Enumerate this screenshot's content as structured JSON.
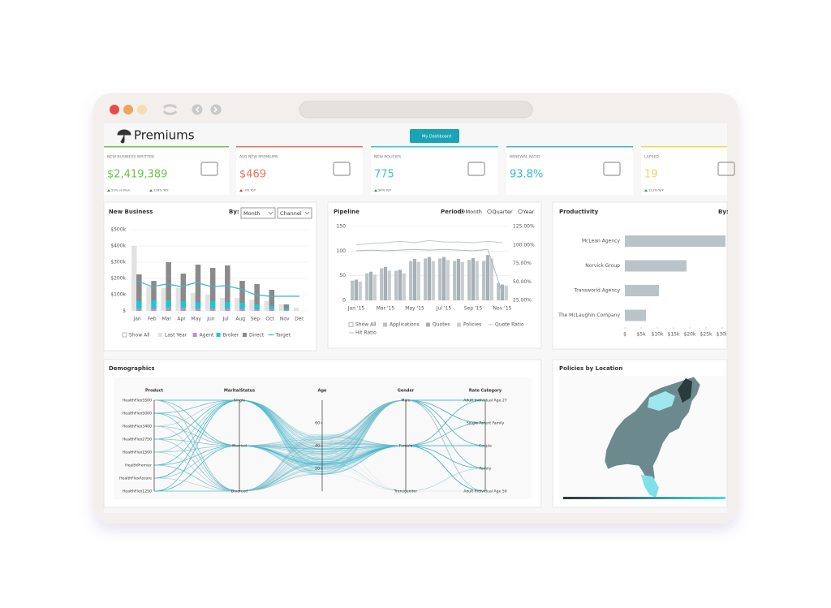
{
  "app": {
    "title": "Premiums",
    "button": "My Dashboard"
  },
  "kpis": [
    {
      "label": "NEW BUSINESS WRITTEN",
      "value": "$2,419,389",
      "notes": [
        "53% vs Plan",
        "116% YoY"
      ],
      "color": "#6cc24a"
    },
    {
      "label": "AVG NEW PREMIUMS",
      "value": "$469",
      "notes": [
        "-3% YoY"
      ],
      "color": "#e8735f"
    },
    {
      "label": "NEW POLICIES",
      "value": "775",
      "notes": [
        "94% YoY"
      ],
      "color": "#3cc3d6"
    },
    {
      "label": "RENEWAL RATIO",
      "value": "93.8%",
      "notes": [],
      "color": "#3cb5d0"
    },
    {
      "label": "LAPSED",
      "value": "19",
      "notes": [
        "111% YoY"
      ],
      "color": "#e5dc5a"
    }
  ],
  "chart_data": [
    {
      "type": "bar",
      "title": "New Business",
      "by_label": "By:",
      "dropdowns": [
        "Month",
        "Channel"
      ],
      "show_all": "Show All",
      "categories": [
        "Jan",
        "Feb",
        "Mar",
        "Apr",
        "May",
        "Jun",
        "Jul",
        "Aug",
        "Sep",
        "Oct",
        "Nov",
        "Dec"
      ],
      "series": [
        {
          "name": "Last Year",
          "color": "#e2e2e2",
          "type": "bar",
          "stack": "last",
          "values": [
            400000,
            150000,
            140000,
            140000,
            110000,
            100000,
            80000,
            80000,
            70000,
            60000,
            40000,
            20000
          ]
        },
        {
          "name": "Agent",
          "color": "#b98fd6",
          "type": "bar",
          "stack": "current",
          "values": [
            15000,
            15000,
            20000,
            20000,
            15000,
            15000,
            15000,
            15000,
            10000,
            10000,
            5000,
            0
          ]
        },
        {
          "name": "Broker",
          "color": "#1ec6d0",
          "type": "bar",
          "stack": "current",
          "values": [
            45000,
            50000,
            45000,
            40000,
            40000,
            45000,
            40000,
            35000,
            30000,
            20000,
            10000,
            0
          ]
        },
        {
          "name": "Direct",
          "color": "#8a8a8a",
          "type": "bar",
          "stack": "current",
          "values": [
            165000,
            120000,
            235000,
            170000,
            230000,
            205000,
            225000,
            135000,
            125000,
            100000,
            25000,
            0
          ]
        },
        {
          "name": "Target",
          "color": "#3fb5d8",
          "type": "line",
          "values": [
            185000,
            150000,
            165000,
            150000,
            175000,
            150000,
            155000,
            135000,
            100000,
            90000,
            90000,
            90000
          ]
        }
      ],
      "ylim": [
        0,
        500000
      ],
      "yticks": [
        {
          "value": 0,
          "label": "$"
        },
        {
          "value": 100000,
          "label": "$100k"
        },
        {
          "value": 200000,
          "label": "$200k"
        },
        {
          "value": 300000,
          "label": "$300k"
        },
        {
          "value": 400000,
          "label": "$400k"
        },
        {
          "value": 500000,
          "label": "$500k"
        }
      ],
      "grid": true
    },
    {
      "type": "combo",
      "title": "Pipeline",
      "period_label": "Period:",
      "periods": [
        "Month",
        "Quarter",
        "Year"
      ],
      "show_all": "Show All",
      "categories": [
        "Jan '15",
        null,
        "Mar '15",
        null,
        "May '15",
        null,
        "Jul '15",
        null,
        "Sep '15",
        null,
        "Nov '15"
      ],
      "series": [
        {
          "name": "Applications",
          "color": "#b9c1c5",
          "type": "bar",
          "values": [
            40,
            55,
            65,
            60,
            80,
            85,
            85,
            80,
            82,
            80,
            35
          ]
        },
        {
          "name": "Quotes",
          "color": "#a7b0b4",
          "type": "bar",
          "values": [
            42,
            58,
            68,
            62,
            84,
            88,
            88,
            84,
            86,
            92,
            32
          ]
        },
        {
          "name": "Policies",
          "color": "#c8ced1",
          "type": "bar",
          "values": [
            38,
            52,
            60,
            55,
            78,
            80,
            82,
            78,
            80,
            85,
            30
          ]
        },
        {
          "name": "Quote Ratio",
          "color": "#c2c8cb",
          "type": "line",
          "axis": "y2",
          "values": [
            100,
            102,
            103,
            105,
            103,
            106,
            104,
            104,
            103,
            105,
            103
          ]
        },
        {
          "name": "Hit Ratio",
          "color": "#b0b8bc",
          "type": "line",
          "axis": "y2",
          "values": [
            92,
            93,
            92,
            93,
            94,
            93,
            94,
            93,
            92,
            94,
            35
          ]
        }
      ],
      "ylim": [
        0,
        150
      ],
      "yticks": [
        0,
        50,
        100,
        150
      ],
      "y2lim": [
        25,
        125
      ],
      "y2ticks": [
        {
          "value": 25,
          "label": "25.00%"
        },
        {
          "value": 50,
          "label": "50.00%"
        },
        {
          "value": 75,
          "label": "75.00%"
        },
        {
          "value": 100,
          "label": "100.00%"
        },
        {
          "value": 125,
          "label": "125.00%"
        }
      ],
      "grid": true
    },
    {
      "type": "hbar",
      "title": "Productivity",
      "by_label": "By:",
      "categories": [
        "McLean Agency",
        "Norvick Group",
        "Transworld Agency",
        "The McLaughin Company"
      ],
      "values": [
        31000,
        19000,
        10500,
        6500
      ],
      "color": "#b9c4ca",
      "xlim": [
        0,
        30000
      ],
      "xticks": [
        {
          "value": 0,
          "label": "$"
        },
        {
          "value": 5000,
          "label": "$5k"
        },
        {
          "value": 10000,
          "label": "$10k"
        },
        {
          "value": 15000,
          "label": "$15k"
        },
        {
          "value": 20000,
          "label": "$20k"
        },
        {
          "value": 25000,
          "label": "$25k"
        },
        {
          "value": 30000,
          "label": "$30k"
        }
      ]
    }
  ],
  "demographics": {
    "title": "Demographics",
    "axes": [
      {
        "title": "Product",
        "labels": [
          "HealthFlex5500",
          "HealthFlex5000",
          "HealthFlex3400",
          "HealthFlex2750",
          "HealthFlex1500",
          "HealthPremier",
          "HealthFlexAssure",
          "HealthFlex1250"
        ]
      },
      {
        "title": "MaritalStatus",
        "labels": [
          "Single",
          "Married",
          "Divorced"
        ]
      },
      {
        "title": "Age",
        "ylim": [
          0,
          80
        ],
        "ticks": [
          20,
          40,
          60
        ]
      },
      {
        "title": "Gender",
        "labels": [
          "Male",
          "Female",
          "Transgender"
        ]
      },
      {
        "title": "Rate Category",
        "labels": [
          "Adult Individual Age 27",
          "Single Parent Family",
          "Couple",
          "Family",
          "Adult Individual Age 50"
        ]
      }
    ]
  },
  "map": {
    "title": "Policies by Location"
  }
}
